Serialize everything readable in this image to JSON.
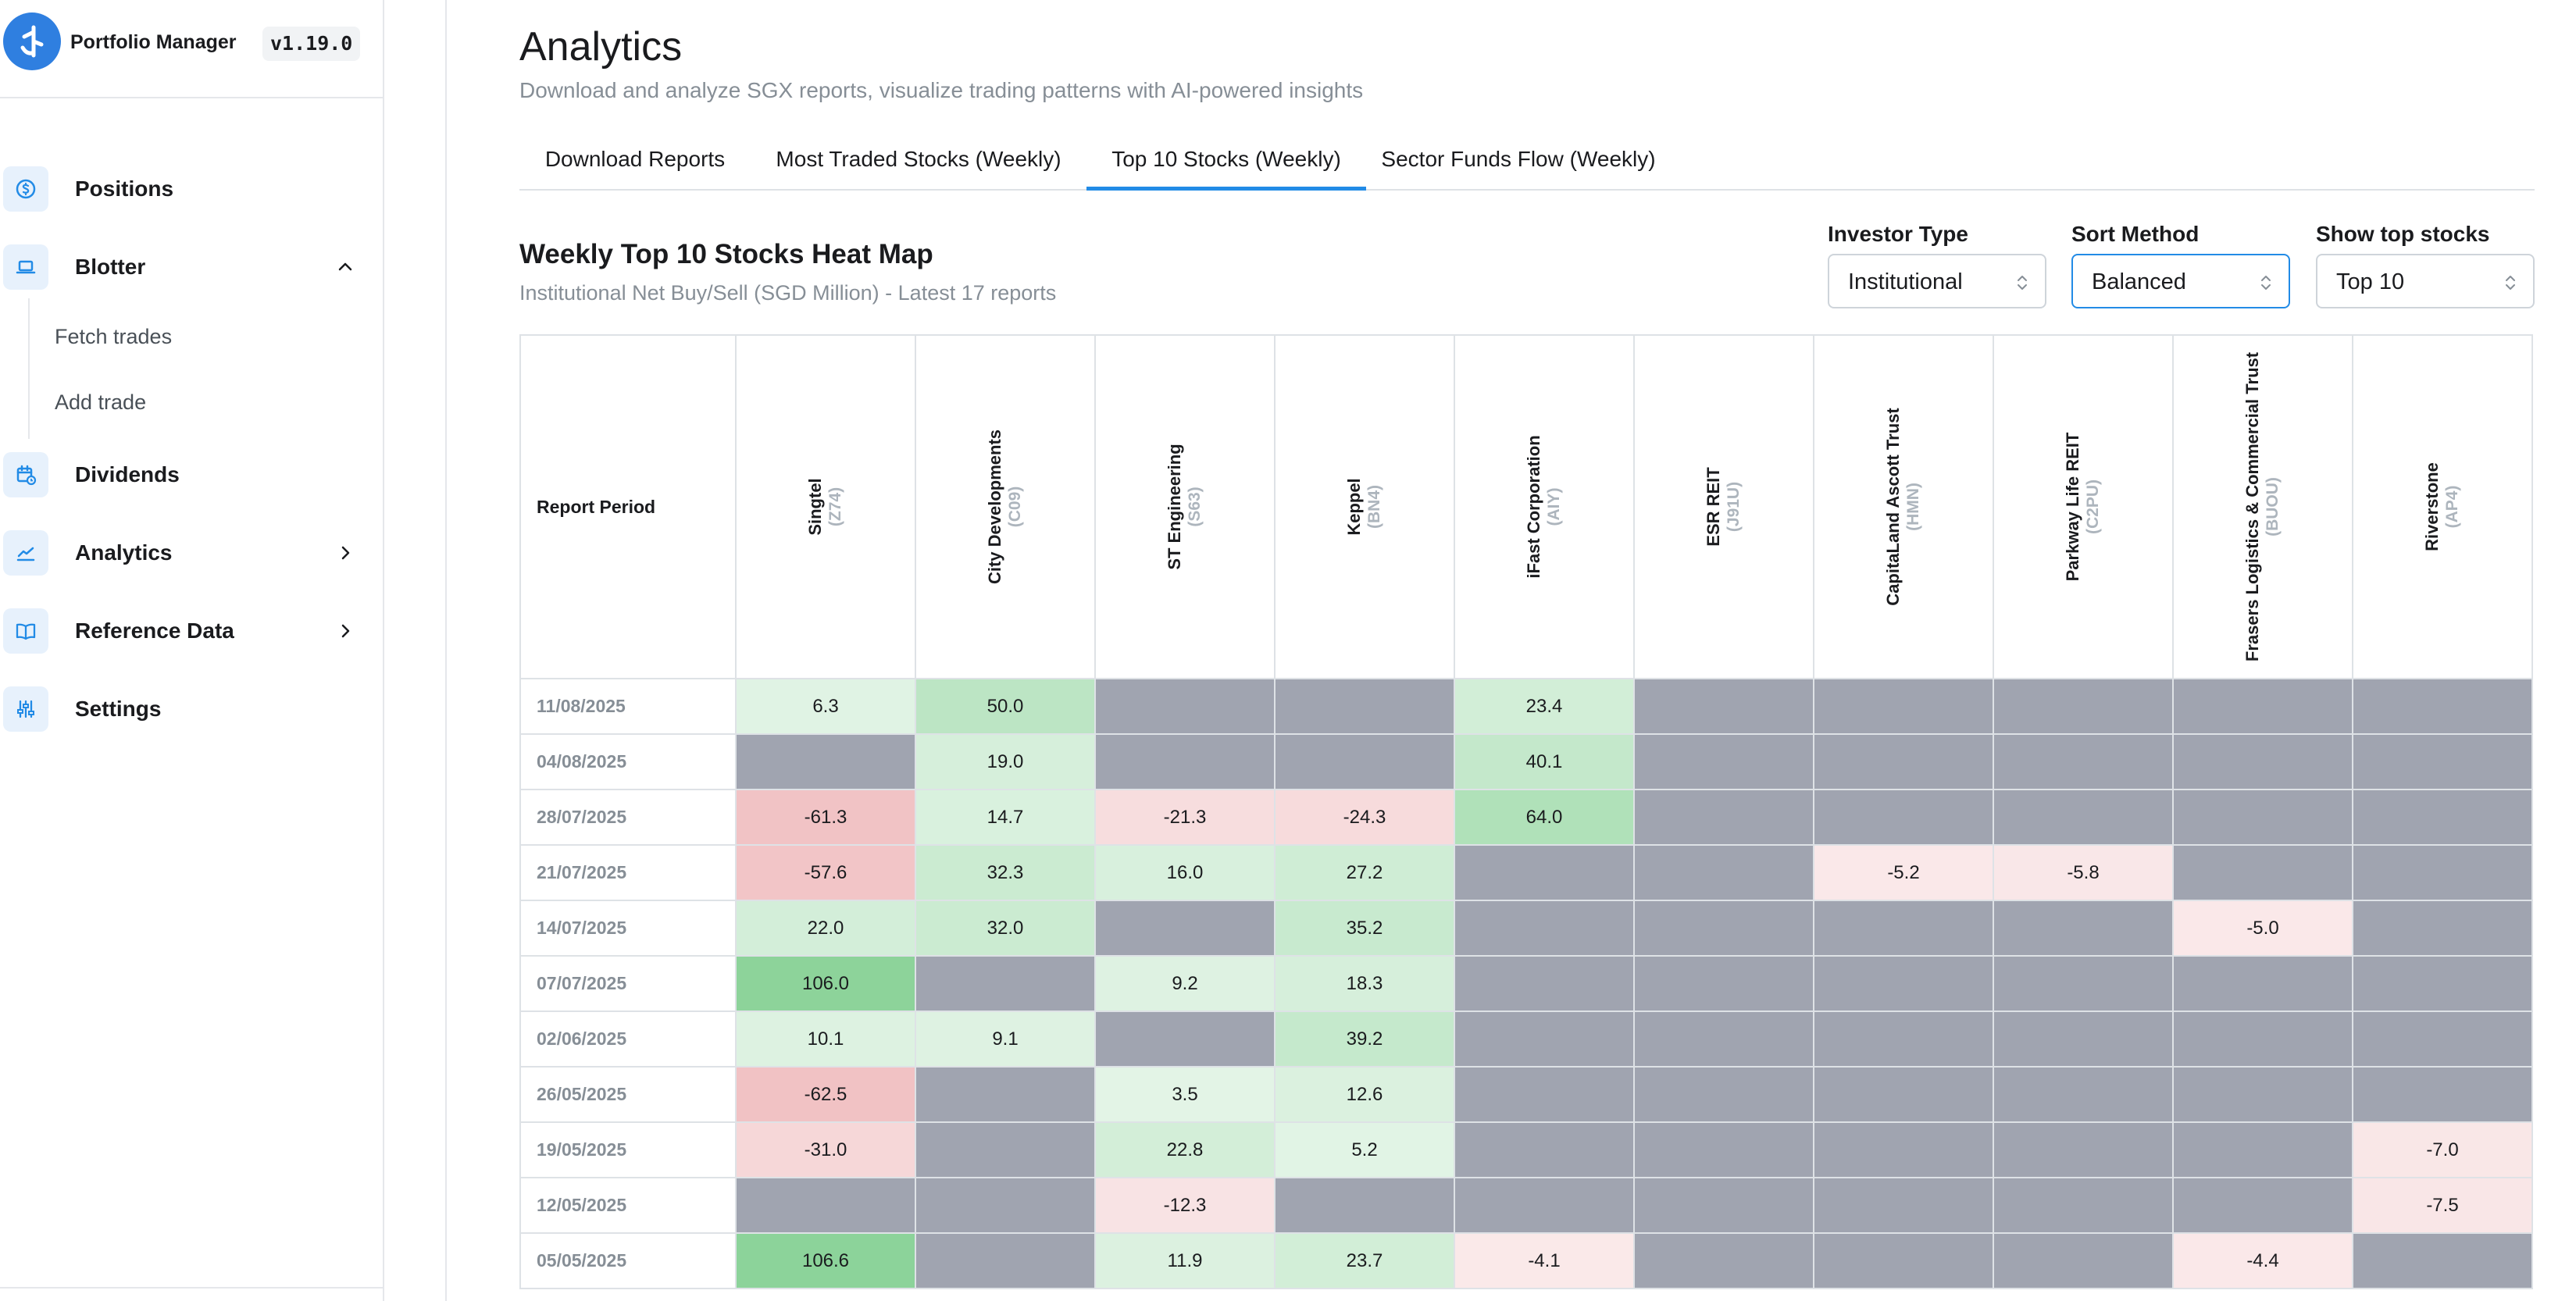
{
  "app": {
    "name": "Portfolio Manager",
    "version": "v1.19.0"
  },
  "sidebar": {
    "items": [
      {
        "label": "Positions",
        "icon": "dollar-circle-icon"
      },
      {
        "label": "Blotter",
        "icon": "laptop-icon",
        "expanded": true
      },
      {
        "label": "Dividends",
        "icon": "calendar-clock-icon"
      },
      {
        "label": "Analytics",
        "icon": "chart-line-icon"
      },
      {
        "label": "Reference Data",
        "icon": "book-icon"
      },
      {
        "label": "Settings",
        "icon": "sliders-icon"
      }
    ],
    "blotter_subitems": [
      "Fetch trades",
      "Add trade"
    ]
  },
  "page": {
    "title": "Analytics",
    "subtitle": "Download and analyze SGX reports, visualize trading patterns with AI-powered insights"
  },
  "tabs": [
    {
      "label": "Download Reports",
      "active": false
    },
    {
      "label": "Most Traded Stocks (Weekly)",
      "active": false
    },
    {
      "label": "Top 10 Stocks (Weekly)",
      "active": true
    },
    {
      "label": "Sector Funds Flow (Weekly)",
      "active": false
    }
  ],
  "heatmap": {
    "title": "Weekly Top 10 Stocks Heat Map",
    "subtitle": "Institutional Net Buy/Sell (SGD Million) - Latest 17 reports",
    "period_header": "Report Period"
  },
  "controls": {
    "investor_type": {
      "label": "Investor Type",
      "value": "Institutional"
    },
    "sort_method": {
      "label": "Sort Method",
      "value": "Balanced"
    },
    "show_top": {
      "label": "Show top stocks",
      "value": "Top 10"
    }
  },
  "colors": {
    "accent": "#228be6",
    "empty_cell": "#a0a4b0",
    "positive": "#8cd39a",
    "negative": "#eaa5a8",
    "logo": "#2f7fe0"
  },
  "chart_data": {
    "type": "heatmap",
    "title": "Weekly Top 10 Stocks Heat Map",
    "subtitle": "Institutional Net Buy/Sell (SGD Million) - Latest 17 reports",
    "row_header": "Report Period",
    "columns": [
      {
        "name": "Singtel",
        "code": "(Z74)"
      },
      {
        "name": "City Developments",
        "code": "(C09)"
      },
      {
        "name": "ST Engineering",
        "code": "(S63)"
      },
      {
        "name": "Keppel",
        "code": "(BN4)"
      },
      {
        "name": "iFast Corporation",
        "code": "(AIY)"
      },
      {
        "name": "ESR REIT",
        "code": "(J91U)"
      },
      {
        "name": "CapitaLand Ascott Trust",
        "code": "(HMN)"
      },
      {
        "name": "Parkway Life REIT",
        "code": "(C2PU)"
      },
      {
        "name": "Frasers Logistics & Commercial Trust",
        "code": "(BUOU)"
      },
      {
        "name": "Riverstone",
        "code": "(AP4)"
      }
    ],
    "rows": [
      {
        "period": "11/08/2025",
        "values": [
          6.3,
          50.0,
          null,
          null,
          23.4,
          null,
          null,
          null,
          null,
          null
        ]
      },
      {
        "period": "04/08/2025",
        "values": [
          null,
          19.0,
          null,
          null,
          40.1,
          null,
          null,
          null,
          null,
          null
        ]
      },
      {
        "period": "28/07/2025",
        "values": [
          -61.3,
          14.7,
          -21.3,
          -24.3,
          64.0,
          null,
          null,
          null,
          null,
          null
        ]
      },
      {
        "period": "21/07/2025",
        "values": [
          -57.6,
          32.3,
          16.0,
          27.2,
          null,
          null,
          -5.2,
          -5.8,
          null,
          null
        ]
      },
      {
        "period": "14/07/2025",
        "values": [
          22.0,
          32.0,
          null,
          35.2,
          null,
          null,
          null,
          null,
          -5.0,
          null
        ]
      },
      {
        "period": "07/07/2025",
        "values": [
          106.0,
          null,
          9.2,
          18.3,
          null,
          null,
          null,
          null,
          null,
          null
        ]
      },
      {
        "period": "02/06/2025",
        "values": [
          10.1,
          9.1,
          null,
          39.2,
          null,
          null,
          null,
          null,
          null,
          null
        ]
      },
      {
        "period": "26/05/2025",
        "values": [
          -62.5,
          null,
          3.5,
          12.6,
          null,
          null,
          null,
          null,
          null,
          null
        ]
      },
      {
        "period": "19/05/2025",
        "values": [
          -31.0,
          null,
          22.8,
          5.2,
          null,
          null,
          null,
          null,
          null,
          -7.0
        ]
      },
      {
        "period": "12/05/2025",
        "values": [
          null,
          null,
          -12.3,
          null,
          null,
          null,
          null,
          null,
          null,
          -7.5
        ]
      },
      {
        "period": "05/05/2025",
        "values": [
          106.6,
          null,
          11.9,
          23.7,
          -4.1,
          null,
          null,
          null,
          -4.4,
          null
        ]
      }
    ],
    "color_scale": {
      "empty": "#a0a4b0",
      "max_positive": "#8cd39a",
      "max_negative": "#eaa5a8"
    }
  }
}
